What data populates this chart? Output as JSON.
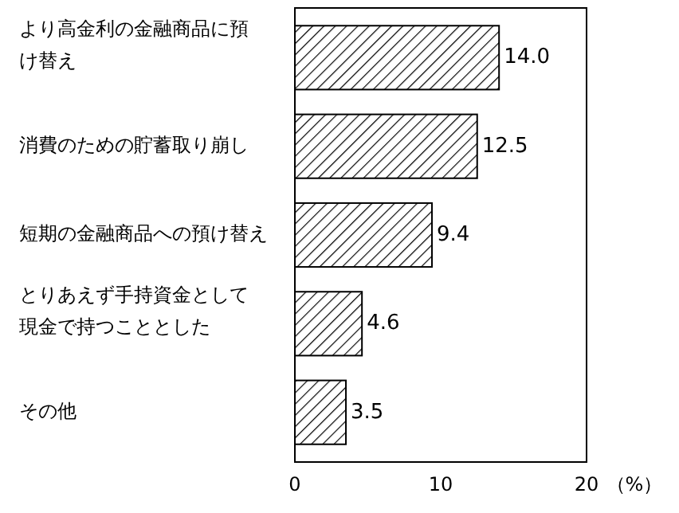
{
  "chart_data": {
    "type": "bar",
    "orientation": "horizontal",
    "categories": [
      "より高金利の金融商品に預け替え",
      "消費のための貯蓄取り崩し",
      "短期の金融商品への預け替え",
      "とりあえず手持資金として現金で持つこととした",
      "その他"
    ],
    "values": [
      14.0,
      12.5,
      9.4,
      4.6,
      3.5
    ],
    "value_labels": [
      "14.0",
      "12.5",
      "9.4",
      "4.6",
      "3.5"
    ],
    "color": "#000000",
    "xlim": [
      0,
      20
    ],
    "xticks": [
      0,
      10,
      20
    ],
    "xlabel": "（%）",
    "grid": false
  }
}
